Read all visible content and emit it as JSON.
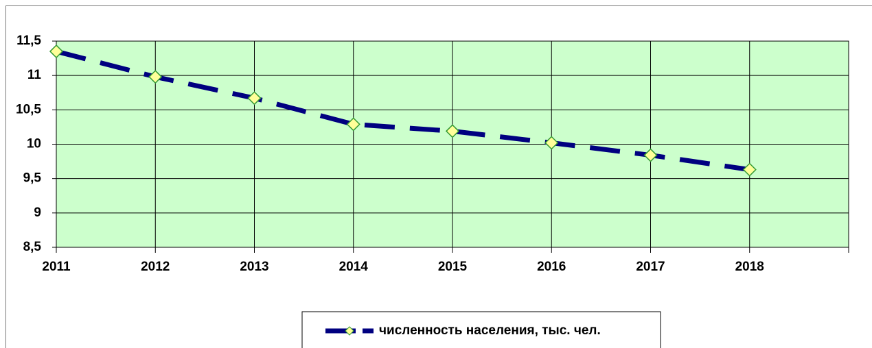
{
  "chart_data": {
    "type": "line",
    "x": [
      2011,
      2012,
      2013,
      2014,
      2015,
      2016,
      2017,
      2018
    ],
    "series": [
      {
        "name": "численность населения, тыс. чел.",
        "color": "#000080",
        "marker_fill": "#ffff99",
        "marker_edge": "#339933",
        "values": [
          11.35,
          10.98,
          10.67,
          10.29,
          10.19,
          10.02,
          9.84,
          9.63
        ]
      }
    ],
    "xlim": [
      2011,
      2019
    ],
    "xticks": [
      2011,
      2012,
      2013,
      2014,
      2015,
      2016,
      2017,
      2018
    ],
    "ylim": [
      8.5,
      11.5
    ],
    "yticks": [
      {
        "value": 8.5,
        "label": "8,5"
      },
      9,
      {
        "value": 9.5,
        "label": "9,5"
      },
      10,
      {
        "value": 10.5,
        "label": "10,5"
      },
      11,
      {
        "value": 11.5,
        "label": "11,5"
      }
    ],
    "grid": true,
    "plot_background": "#ccffcc",
    "legend": "bottom"
  }
}
